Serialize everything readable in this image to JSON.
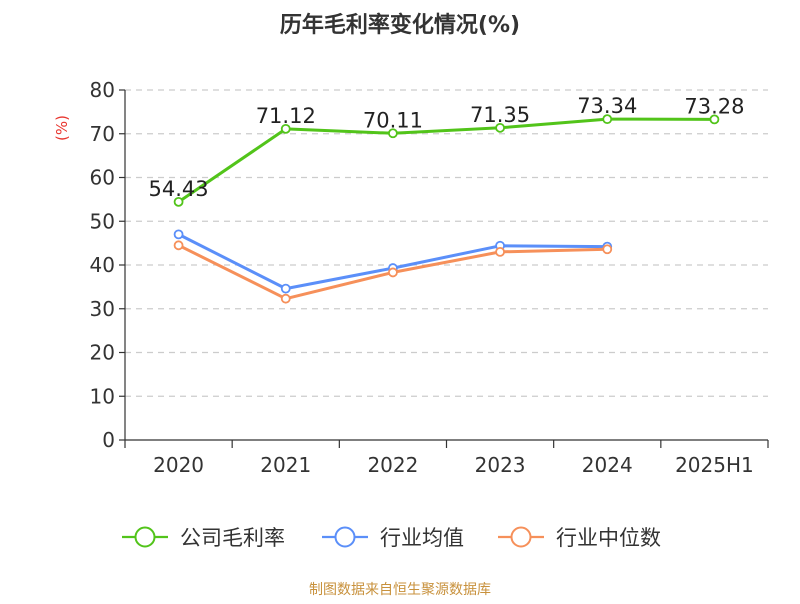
{
  "chart_data": {
    "type": "line",
    "title": "历年毛利率变化情况(%)",
    "ylabel": "(%)",
    "xlabel": "",
    "categories": [
      "2020",
      "2021",
      "2022",
      "2023",
      "2024",
      "2025H1"
    ],
    "ylim": [
      0,
      80
    ],
    "yticks": [
      0,
      10,
      20,
      30,
      40,
      50,
      60,
      70,
      80
    ],
    "grid": true,
    "legend_position": "bottom",
    "series": [
      {
        "name": "公司毛利率",
        "color": "#52c41a",
        "values": [
          54.43,
          71.12,
          70.11,
          71.35,
          73.34,
          73.28
        ],
        "labels": [
          "54.43",
          "71.12",
          "70.11",
          "71.35",
          "73.34",
          "73.28"
        ]
      },
      {
        "name": "行业均值",
        "color": "#5b8ff9",
        "values": [
          47.0,
          34.6,
          39.3,
          44.4,
          44.2,
          null
        ]
      },
      {
        "name": "行业中位数",
        "color": "#f6905a",
        "values": [
          44.5,
          32.3,
          38.3,
          43.0,
          43.6,
          null
        ]
      }
    ]
  },
  "source_note": "制图数据来自恒生聚源数据库",
  "colors": {
    "title": "#333333",
    "axis": "#333333",
    "grid": "#cccccc",
    "ylabel": "#e8352e",
    "source": "#c8913c"
  }
}
